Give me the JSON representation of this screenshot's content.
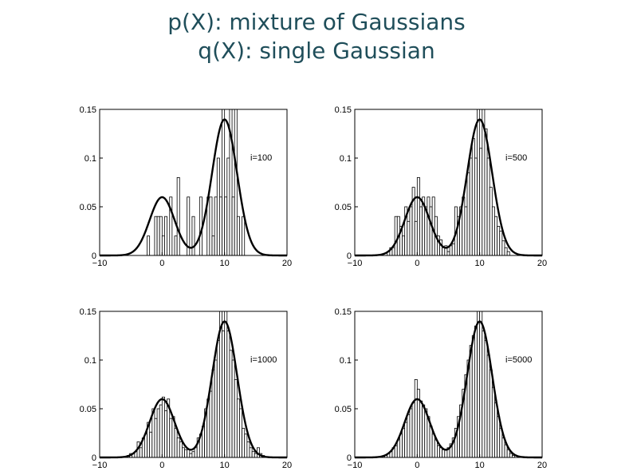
{
  "title": {
    "line1": "p(X): mixture of Gaussians",
    "line2": "q(X): single Gaussian"
  },
  "colors": {
    "title": "#1f4e5a",
    "bars": "#000000",
    "curve": "#000000",
    "background": "#ffffff"
  },
  "chart_data": [
    {
      "type": "bar",
      "annotation": "i=100",
      "xlim": [
        -10,
        20
      ],
      "ylim": [
        0,
        0.15
      ],
      "xticks": [
        "−10",
        "0",
        "10",
        "20"
      ],
      "yticks": [
        "0",
        "0.05",
        "0.1",
        "0.15"
      ],
      "bin_width": 0.4,
      "histogram": [
        {
          "x": -2.2,
          "y": 0.02
        },
        {
          "x": -1.0,
          "y": 0.04
        },
        {
          "x": -0.6,
          "y": 0.04
        },
        {
          "x": -0.2,
          "y": 0.04
        },
        {
          "x": 0.2,
          "y": 0.02
        },
        {
          "x": 0.6,
          "y": 0.04
        },
        {
          "x": 1.4,
          "y": 0.06
        },
        {
          "x": 2.2,
          "y": 0.02
        },
        {
          "x": 2.6,
          "y": 0.08
        },
        {
          "x": 4.2,
          "y": 0.06
        },
        {
          "x": 5.0,
          "y": 0.04
        },
        {
          "x": 6.2,
          "y": 0.06
        },
        {
          "x": 7.4,
          "y": 0.06
        },
        {
          "x": 7.8,
          "y": 0.06
        },
        {
          "x": 8.2,
          "y": 0.02
        },
        {
          "x": 8.6,
          "y": 0.06
        },
        {
          "x": 9.0,
          "y": 0.1
        },
        {
          "x": 9.4,
          "y": 0.06
        },
        {
          "x": 9.8,
          "y": 0.15
        },
        {
          "x": 10.2,
          "y": 0.06
        },
        {
          "x": 10.6,
          "y": 0.1
        },
        {
          "x": 11.0,
          "y": 0.15
        },
        {
          "x": 11.4,
          "y": 0.06
        },
        {
          "x": 11.8,
          "y": 0.15
        },
        {
          "x": 12.2,
          "y": 0.04
        },
        {
          "x": 13.0,
          "y": 0.04
        }
      ],
      "components": [
        {
          "mean": 0,
          "sd": 2,
          "weight": 0.3
        },
        {
          "mean": 10,
          "sd": 2,
          "weight": 0.7
        }
      ]
    },
    {
      "type": "bar",
      "annotation": "i=500",
      "xlim": [
        -10,
        20
      ],
      "ylim": [
        0,
        0.15
      ],
      "xticks": [
        "−10",
        "0",
        "10",
        "20"
      ],
      "yticks": [
        "0",
        "0.05",
        "0.1",
        "0.15"
      ],
      "bin_width": 0.4,
      "histogram": [
        {
          "x": -4.6,
          "y": 0.004
        },
        {
          "x": -4.2,
          "y": 0.008
        },
        {
          "x": -3.8,
          "y": 0.008
        },
        {
          "x": -3.4,
          "y": 0.04
        },
        {
          "x": -3.0,
          "y": 0.04
        },
        {
          "x": -2.6,
          "y": 0.03
        },
        {
          "x": -2.2,
          "y": 0.02
        },
        {
          "x": -1.8,
          "y": 0.05
        },
        {
          "x": -1.4,
          "y": 0.035
        },
        {
          "x": -1.0,
          "y": 0.05
        },
        {
          "x": -0.6,
          "y": 0.07
        },
        {
          "x": -0.2,
          "y": 0.035
        },
        {
          "x": 0.2,
          "y": 0.08
        },
        {
          "x": 0.6,
          "y": 0.05
        },
        {
          "x": 1.0,
          "y": 0.06
        },
        {
          "x": 1.4,
          "y": 0.05
        },
        {
          "x": 1.8,
          "y": 0.06
        },
        {
          "x": 2.2,
          "y": 0.05
        },
        {
          "x": 2.6,
          "y": 0.06
        },
        {
          "x": 3.0,
          "y": 0.04
        },
        {
          "x": 3.4,
          "y": 0.02
        },
        {
          "x": 3.8,
          "y": 0.016
        },
        {
          "x": 4.2,
          "y": 0.008
        },
        {
          "x": 4.6,
          "y": 0.01
        },
        {
          "x": 5.0,
          "y": 0.004
        },
        {
          "x": 5.4,
          "y": 0.01
        },
        {
          "x": 5.8,
          "y": 0.012
        },
        {
          "x": 6.2,
          "y": 0.05
        },
        {
          "x": 6.6,
          "y": 0.04
        },
        {
          "x": 7.0,
          "y": 0.05
        },
        {
          "x": 7.4,
          "y": 0.06
        },
        {
          "x": 7.8,
          "y": 0.05
        },
        {
          "x": 8.2,
          "y": 0.085
        },
        {
          "x": 8.6,
          "y": 0.1
        },
        {
          "x": 9.0,
          "y": 0.12
        },
        {
          "x": 9.4,
          "y": 0.1
        },
        {
          "x": 9.8,
          "y": 0.15
        },
        {
          "x": 10.2,
          "y": 0.11
        },
        {
          "x": 10.6,
          "y": 0.15
        },
        {
          "x": 11.0,
          "y": 0.13
        },
        {
          "x": 11.4,
          "y": 0.1
        },
        {
          "x": 11.8,
          "y": 0.07
        },
        {
          "x": 12.2,
          "y": 0.05
        },
        {
          "x": 12.6,
          "y": 0.04
        },
        {
          "x": 13.0,
          "y": 0.03
        },
        {
          "x": 13.4,
          "y": 0.025
        },
        {
          "x": 13.8,
          "y": 0.015
        },
        {
          "x": 14.2,
          "y": 0.008
        },
        {
          "x": 14.6,
          "y": 0.004
        }
      ],
      "components": [
        {
          "mean": 0,
          "sd": 2,
          "weight": 0.3
        },
        {
          "mean": 10,
          "sd": 2,
          "weight": 0.7
        }
      ]
    },
    {
      "type": "bar",
      "annotation": "i=1000",
      "xlim": [
        -10,
        20
      ],
      "ylim": [
        0,
        0.15
      ],
      "xticks": [
        "−10",
        "0",
        "10",
        "20"
      ],
      "yticks": [
        "0",
        "0.05",
        "0.1",
        "0.15"
      ],
      "bin_width": 0.4,
      "histogram": [
        {
          "x": -5.4,
          "y": 0.002
        },
        {
          "x": -5.0,
          "y": 0.004
        },
        {
          "x": -4.6,
          "y": 0.004
        },
        {
          "x": -4.2,
          "y": 0.006
        },
        {
          "x": -3.8,
          "y": 0.016
        },
        {
          "x": -3.4,
          "y": 0.01
        },
        {
          "x": -3.0,
          "y": 0.02
        },
        {
          "x": -2.6,
          "y": 0.024
        },
        {
          "x": -2.2,
          "y": 0.036
        },
        {
          "x": -1.8,
          "y": 0.026
        },
        {
          "x": -1.4,
          "y": 0.05
        },
        {
          "x": -1.0,
          "y": 0.04
        },
        {
          "x": -0.6,
          "y": 0.05
        },
        {
          "x": -0.2,
          "y": 0.054
        },
        {
          "x": 0.2,
          "y": 0.062
        },
        {
          "x": 0.6,
          "y": 0.048
        },
        {
          "x": 1.0,
          "y": 0.06
        },
        {
          "x": 1.4,
          "y": 0.04
        },
        {
          "x": 1.8,
          "y": 0.042
        },
        {
          "x": 2.2,
          "y": 0.03
        },
        {
          "x": 2.6,
          "y": 0.02
        },
        {
          "x": 3.0,
          "y": 0.016
        },
        {
          "x": 3.4,
          "y": 0.01
        },
        {
          "x": 3.8,
          "y": 0.008
        },
        {
          "x": 4.2,
          "y": 0.008
        },
        {
          "x": 4.6,
          "y": 0.004
        },
        {
          "x": 5.0,
          "y": 0.006
        },
        {
          "x": 5.4,
          "y": 0.01
        },
        {
          "x": 5.8,
          "y": 0.02
        },
        {
          "x": 6.2,
          "y": 0.024
        },
        {
          "x": 6.6,
          "y": 0.032
        },
        {
          "x": 7.0,
          "y": 0.05
        },
        {
          "x": 7.4,
          "y": 0.06
        },
        {
          "x": 7.8,
          "y": 0.068
        },
        {
          "x": 8.2,
          "y": 0.09
        },
        {
          "x": 8.6,
          "y": 0.1
        },
        {
          "x": 9.0,
          "y": 0.12
        },
        {
          "x": 9.4,
          "y": 0.15
        },
        {
          "x": 9.8,
          "y": 0.13
        },
        {
          "x": 10.2,
          "y": 0.15
        },
        {
          "x": 10.6,
          "y": 0.13
        },
        {
          "x": 11.0,
          "y": 0.11
        },
        {
          "x": 11.4,
          "y": 0.1
        },
        {
          "x": 11.8,
          "y": 0.08
        },
        {
          "x": 12.2,
          "y": 0.06
        },
        {
          "x": 12.6,
          "y": 0.05
        },
        {
          "x": 13.0,
          "y": 0.03
        },
        {
          "x": 13.4,
          "y": 0.024
        },
        {
          "x": 13.8,
          "y": 0.016
        },
        {
          "x": 14.2,
          "y": 0.01
        },
        {
          "x": 14.6,
          "y": 0.006
        },
        {
          "x": 15.0,
          "y": 0.004
        },
        {
          "x": 15.4,
          "y": 0.01
        },
        {
          "x": 15.8,
          "y": 0.004
        },
        {
          "x": 16.2,
          "y": 0.002
        }
      ],
      "components": [
        {
          "mean": 0,
          "sd": 2,
          "weight": 0.3
        },
        {
          "mean": 10,
          "sd": 2,
          "weight": 0.7
        }
      ]
    },
    {
      "type": "bar",
      "annotation": "i=5000",
      "xlim": [
        -10,
        20
      ],
      "ylim": [
        0,
        0.15
      ],
      "xticks": [
        "−10",
        "0",
        "10",
        "20"
      ],
      "yticks": [
        "0",
        "0.05",
        "0.1",
        "0.15"
      ],
      "bin_width": 0.4,
      "histogram": [
        {
          "x": -5.0,
          "y": 0.002
        },
        {
          "x": -4.6,
          "y": 0.004
        },
        {
          "x": -4.2,
          "y": 0.006
        },
        {
          "x": -3.8,
          "y": 0.01
        },
        {
          "x": -3.4,
          "y": 0.012
        },
        {
          "x": -3.0,
          "y": 0.018
        },
        {
          "x": -2.6,
          "y": 0.024
        },
        {
          "x": -2.2,
          "y": 0.03
        },
        {
          "x": -1.8,
          "y": 0.036
        },
        {
          "x": -1.4,
          "y": 0.044
        },
        {
          "x": -1.0,
          "y": 0.05
        },
        {
          "x": -0.6,
          "y": 0.056
        },
        {
          "x": -0.2,
          "y": 0.08
        },
        {
          "x": 0.2,
          "y": 0.07
        },
        {
          "x": 0.6,
          "y": 0.058
        },
        {
          "x": 1.0,
          "y": 0.054
        },
        {
          "x": 1.4,
          "y": 0.05
        },
        {
          "x": 1.8,
          "y": 0.042
        },
        {
          "x": 2.2,
          "y": 0.032
        },
        {
          "x": 2.6,
          "y": 0.024
        },
        {
          "x": 3.0,
          "y": 0.018
        },
        {
          "x": 3.4,
          "y": 0.012
        },
        {
          "x": 3.8,
          "y": 0.01
        },
        {
          "x": 4.2,
          "y": 0.008
        },
        {
          "x": 4.6,
          "y": 0.008
        },
        {
          "x": 5.0,
          "y": 0.01
        },
        {
          "x": 5.4,
          "y": 0.014
        },
        {
          "x": 5.8,
          "y": 0.02
        },
        {
          "x": 6.2,
          "y": 0.03
        },
        {
          "x": 6.6,
          "y": 0.042
        },
        {
          "x": 7.0,
          "y": 0.054
        },
        {
          "x": 7.4,
          "y": 0.07
        },
        {
          "x": 7.8,
          "y": 0.085
        },
        {
          "x": 8.2,
          "y": 0.1
        },
        {
          "x": 8.6,
          "y": 0.115
        },
        {
          "x": 9.0,
          "y": 0.125
        },
        {
          "x": 9.4,
          "y": 0.135
        },
        {
          "x": 9.8,
          "y": 0.15
        },
        {
          "x": 10.2,
          "y": 0.15
        },
        {
          "x": 10.6,
          "y": 0.13
        },
        {
          "x": 11.0,
          "y": 0.12
        },
        {
          "x": 11.4,
          "y": 0.105
        },
        {
          "x": 11.8,
          "y": 0.09
        },
        {
          "x": 12.2,
          "y": 0.072
        },
        {
          "x": 12.6,
          "y": 0.056
        },
        {
          "x": 13.0,
          "y": 0.042
        },
        {
          "x": 13.4,
          "y": 0.03
        },
        {
          "x": 13.8,
          "y": 0.02
        },
        {
          "x": 14.2,
          "y": 0.013
        },
        {
          "x": 14.6,
          "y": 0.008
        },
        {
          "x": 15.0,
          "y": 0.004
        },
        {
          "x": 15.4,
          "y": 0.002
        }
      ],
      "components": [
        {
          "mean": 0,
          "sd": 2,
          "weight": 0.3
        },
        {
          "mean": 10,
          "sd": 2,
          "weight": 0.7
        }
      ]
    }
  ]
}
